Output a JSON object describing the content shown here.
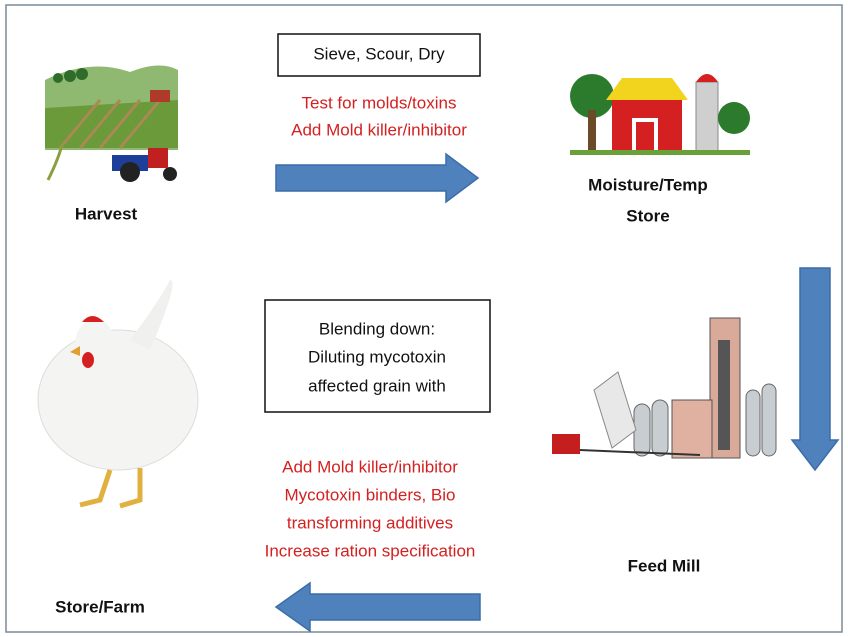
{
  "nodes": [
    {
      "label": [
        "Harvest"
      ]
    },
    {
      "label": [
        "Moisture/Temp",
        "Store"
      ]
    },
    {
      "label": [
        "Feed Mill"
      ]
    },
    {
      "label": [
        "Store/Farm"
      ]
    }
  ],
  "steps": [
    {
      "box": [
        "Sieve, Scour, Dry"
      ],
      "notes": [
        "Test for molds/toxins",
        "Add Mold killer/inhibitor"
      ]
    },
    {
      "box": [
        "Blending down:",
        "Diluting mycotoxin",
        "affected grain with"
      ],
      "notes": [
        "Add Mold killer/inhibitor",
        "Mycotoxin binders, Bio",
        "transforming additives",
        "Increase ration specification"
      ]
    }
  ]
}
